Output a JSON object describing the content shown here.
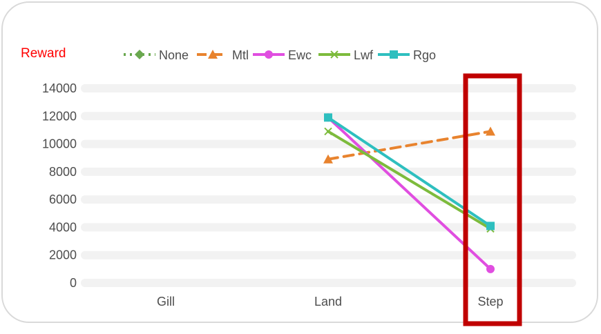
{
  "chart_data": {
    "type": "line",
    "ylabel": "Reward",
    "categories": [
      "Gill",
      "Land",
      "Step"
    ],
    "yticks": [
      0,
      2000,
      4000,
      6000,
      8000,
      10000,
      12000,
      14000
    ],
    "ylim": [
      0,
      14000
    ],
    "grid": true,
    "legend_position": "top",
    "highlight_category": "Step",
    "series": [
      {
        "name": "None",
        "color": "#6aa84f",
        "marker": "diamond",
        "dash": "dotted",
        "values": [
          null,
          null,
          null
        ]
      },
      {
        "name": "Mtl",
        "color": "#e8832e",
        "marker": "triangle",
        "dash": "dashed",
        "values": [
          null,
          8900,
          10900
        ]
      },
      {
        "name": "Ewc",
        "color": "#e04ee0",
        "marker": "circle",
        "dash": "solid",
        "values": [
          null,
          11900,
          1000
        ]
      },
      {
        "name": "Lwf",
        "color": "#7dbb3c",
        "marker": "x",
        "dash": "solid",
        "values": [
          null,
          10900,
          3900
        ]
      },
      {
        "name": "Rgo",
        "color": "#2ebfbf",
        "marker": "square",
        "dash": "solid",
        "values": [
          null,
          11900,
          4100
        ]
      }
    ]
  },
  "colors": {
    "highlight_box": "#c00000",
    "grid_band": "#f2f2f2"
  }
}
